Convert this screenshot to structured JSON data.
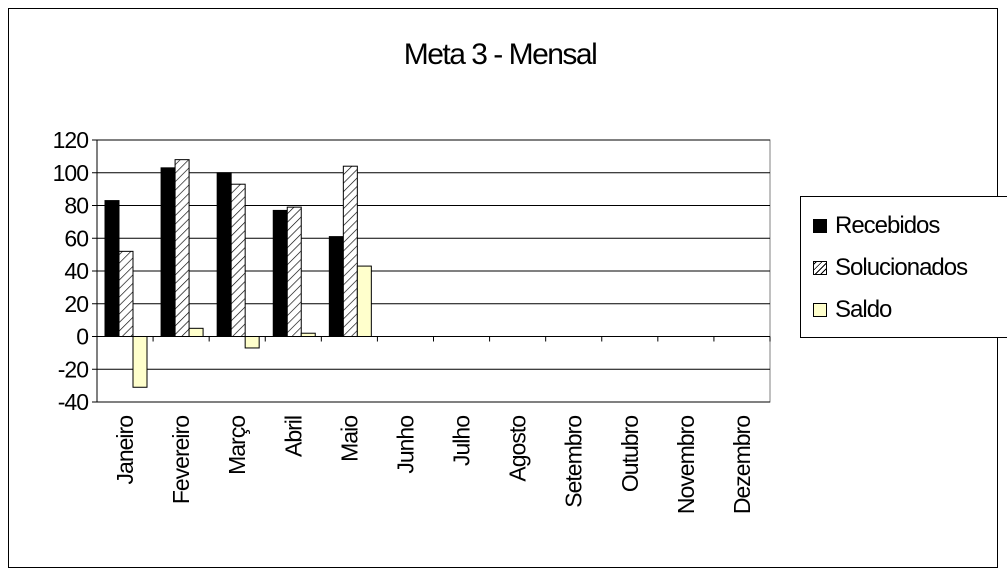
{
  "chart_data": {
    "type": "bar",
    "title": "Meta 3 - Mensal",
    "xlabel": "",
    "ylabel": "",
    "ylim": [
      -40,
      120
    ],
    "yticks": [
      120,
      100,
      80,
      60,
      40,
      20,
      0,
      -20,
      -40
    ],
    "grid": true,
    "legend_position": "right",
    "categories": [
      "Janeiro",
      "Fevereiro",
      "Março",
      "Abril",
      "Maio",
      "Junho",
      "Julho",
      "Agosto",
      "Setembro",
      "Outubro",
      "Novembro",
      "Dezembro"
    ],
    "series": [
      {
        "name": "Recebidos",
        "color": "#000000",
        "pattern": "solid",
        "values": [
          83,
          103,
          100,
          77,
          61,
          null,
          null,
          null,
          null,
          null,
          null,
          null
        ]
      },
      {
        "name": "Solucionados",
        "color": "#ffffff",
        "pattern": "diagonal-hatch",
        "values": [
          52,
          108,
          93,
          79,
          104,
          null,
          null,
          null,
          null,
          null,
          null,
          null
        ]
      },
      {
        "name": "Saldo",
        "color": "#ffffcc",
        "pattern": "solid",
        "values": [
          -31,
          5,
          -7,
          2,
          43,
          null,
          null,
          null,
          null,
          null,
          null,
          null
        ]
      }
    ]
  }
}
